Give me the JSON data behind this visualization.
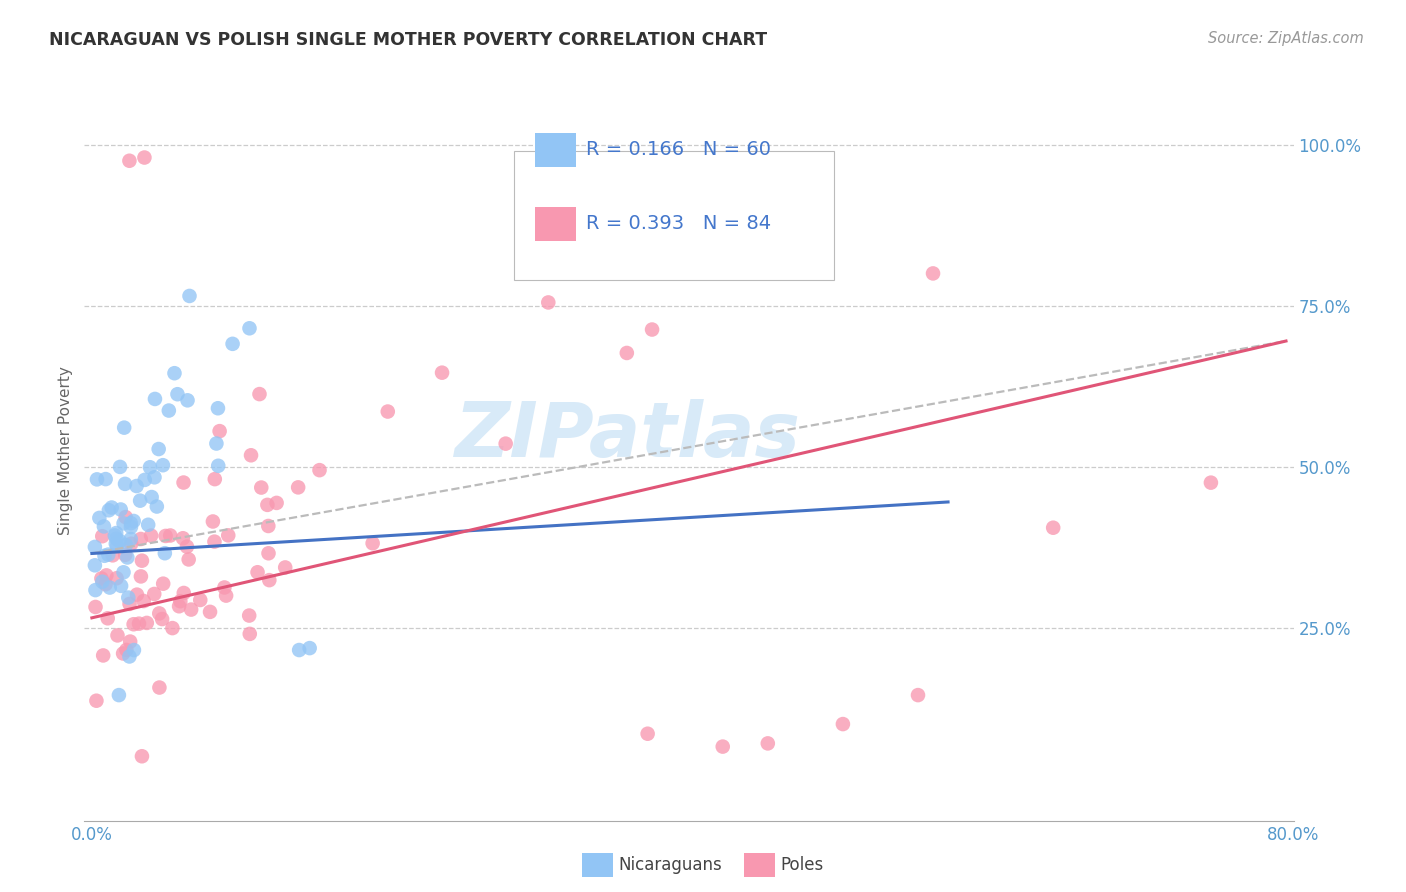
{
  "title": "NICARAGUAN VS POLISH SINGLE MOTHER POVERTY CORRELATION CHART",
  "source": "Source: ZipAtlas.com",
  "ylabel": "Single Mother Poverty",
  "ytick_labels": [
    "100.0%",
    "75.0%",
    "50.0%",
    "25.0%"
  ],
  "ytick_positions": [
    1.0,
    0.75,
    0.5,
    0.25
  ],
  "xlim": [
    -0.005,
    0.8
  ],
  "ylim": [
    -0.05,
    1.1
  ],
  "legend_r_blue": "R = 0.166",
  "legend_n_blue": "N = 60",
  "legend_r_pink": "R = 0.393",
  "legend_n_pink": "N = 84",
  "color_blue": "#92C5F5",
  "color_pink": "#F898B0",
  "color_blue_line": "#4472C4",
  "color_pink_line": "#E05577",
  "color_dashed_line": "#BBBBBB",
  "watermark_color": "#D8EAF8",
  "background_color": "#FFFFFF",
  "grid_color": "#CCCCCC",
  "title_color": "#333333",
  "axis_tick_color": "#5599CC",
  "legend_text_color": "#4477CC",
  "legend_label_blue": "Nicaraguans",
  "legend_label_pink": "Poles",
  "blue_line_x": [
    0.0,
    0.57
  ],
  "blue_line_y": [
    0.365,
    0.445
  ],
  "pink_line_x": [
    0.0,
    0.795
  ],
  "pink_line_y": [
    0.265,
    0.695
  ],
  "dashed_line_x": [
    0.0,
    0.795
  ],
  "dashed_line_y": [
    0.365,
    0.695
  ]
}
